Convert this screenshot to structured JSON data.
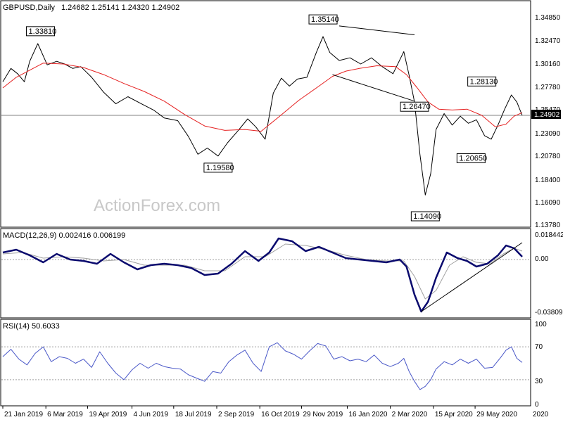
{
  "chart_data": [
    {
      "type": "ohlc",
      "title": "GBPUSD,Daily",
      "ohlc": "1.24682 1.25141 1.24320 1.24902",
      "ylim": [
        1.125,
        1.365
      ],
      "y_ticks": [
        "1.34850",
        "1.32470",
        "1.30160",
        "1.27780",
        "1.25470",
        "1.23090",
        "1.20780",
        "1.18400",
        "1.16090",
        "1.13780"
      ],
      "current_price": "1.24902",
      "watermark": "ActionForex.com",
      "price_series": [
        {
          "t": 0,
          "p": 1.287
        },
        {
          "t": 6,
          "p": 1.302
        },
        {
          "t": 11,
          "p": 1.296
        },
        {
          "t": 16,
          "p": 1.287
        },
        {
          "t": 20,
          "p": 1.31
        },
        {
          "t": 26,
          "p": 1.33
        },
        {
          "t": 33,
          "p": 1.306
        },
        {
          "t": 40,
          "p": 1.31
        },
        {
          "t": 46,
          "p": 1.307
        },
        {
          "t": 52,
          "p": 1.302
        },
        {
          "t": 58,
          "p": 1.304
        },
        {
          "t": 66,
          "p": 1.292
        },
        {
          "t": 75,
          "p": 1.275
        },
        {
          "t": 84,
          "p": 1.262
        },
        {
          "t": 93,
          "p": 1.27
        },
        {
          "t": 103,
          "p": 1.262
        },
        {
          "t": 112,
          "p": 1.255
        },
        {
          "t": 120,
          "p": 1.246
        },
        {
          "t": 130,
          "p": 1.243
        },
        {
          "t": 138,
          "p": 1.225
        },
        {
          "t": 145,
          "p": 1.205
        },
        {
          "t": 152,
          "p": 1.212
        },
        {
          "t": 160,
          "p": 1.203
        },
        {
          "t": 167,
          "p": 1.218
        },
        {
          "t": 175,
          "p": 1.232
        },
        {
          "t": 182,
          "p": 1.245
        },
        {
          "t": 188,
          "p": 1.236
        },
        {
          "t": 195,
          "p": 1.222
        },
        {
          "t": 201,
          "p": 1.274
        },
        {
          "t": 207,
          "p": 1.291
        },
        {
          "t": 213,
          "p": 1.282
        },
        {
          "t": 219,
          "p": 1.29
        },
        {
          "t": 226,
          "p": 1.292
        },
        {
          "t": 233,
          "p": 1.32
        },
        {
          "t": 238,
          "p": 1.338
        },
        {
          "t": 243,
          "p": 1.32
        },
        {
          "t": 250,
          "p": 1.311
        },
        {
          "t": 258,
          "p": 1.314
        },
        {
          "t": 266,
          "p": 1.307
        },
        {
          "t": 274,
          "p": 1.314
        },
        {
          "t": 282,
          "p": 1.304
        },
        {
          "t": 290,
          "p": 1.296
        },
        {
          "t": 298,
          "p": 1.321
        },
        {
          "t": 302,
          "p": 1.294
        },
        {
          "t": 306,
          "p": 1.264
        },
        {
          "t": 310,
          "p": 1.205
        },
        {
          "t": 314,
          "p": 1.159
        },
        {
          "t": 318,
          "p": 1.183
        },
        {
          "t": 322,
          "p": 1.233
        },
        {
          "t": 328,
          "p": 1.251
        },
        {
          "t": 334,
          "p": 1.238
        },
        {
          "t": 340,
          "p": 1.248
        },
        {
          "t": 346,
          "p": 1.24
        },
        {
          "t": 352,
          "p": 1.244
        },
        {
          "t": 358,
          "p": 1.226
        },
        {
          "t": 363,
          "p": 1.222
        },
        {
          "t": 368,
          "p": 1.238
        },
        {
          "t": 373,
          "p": 1.256
        },
        {
          "t": 378,
          "p": 1.272
        },
        {
          "t": 382,
          "p": 1.264
        },
        {
          "t": 386,
          "p": 1.249
        }
      ],
      "ma_series": [
        {
          "t": 0,
          "p": 1.28
        },
        {
          "t": 10,
          "p": 1.292
        },
        {
          "t": 20,
          "p": 1.3
        },
        {
          "t": 30,
          "p": 1.308
        },
        {
          "t": 45,
          "p": 1.307
        },
        {
          "t": 60,
          "p": 1.303
        },
        {
          "t": 75,
          "p": 1.295
        },
        {
          "t": 90,
          "p": 1.285
        },
        {
          "t": 105,
          "p": 1.276
        },
        {
          "t": 120,
          "p": 1.265
        },
        {
          "t": 135,
          "p": 1.25
        },
        {
          "t": 150,
          "p": 1.237
        },
        {
          "t": 165,
          "p": 1.232
        },
        {
          "t": 180,
          "p": 1.233
        },
        {
          "t": 192,
          "p": 1.231
        },
        {
          "t": 205,
          "p": 1.247
        },
        {
          "t": 220,
          "p": 1.266
        },
        {
          "t": 235,
          "p": 1.282
        },
        {
          "t": 245,
          "p": 1.293
        },
        {
          "t": 255,
          "p": 1.299
        },
        {
          "t": 265,
          "p": 1.302
        },
        {
          "t": 278,
          "p": 1.305
        },
        {
          "t": 292,
          "p": 1.304
        },
        {
          "t": 300,
          "p": 1.295
        },
        {
          "t": 308,
          "p": 1.28
        },
        {
          "t": 316,
          "p": 1.264
        },
        {
          "t": 324,
          "p": 1.256
        },
        {
          "t": 334,
          "p": 1.255
        },
        {
          "t": 345,
          "p": 1.256
        },
        {
          "t": 356,
          "p": 1.249
        },
        {
          "t": 366,
          "p": 1.236
        },
        {
          "t": 374,
          "p": 1.239
        },
        {
          "t": 380,
          "p": 1.248
        },
        {
          "t": 386,
          "p": 1.252
        }
      ],
      "annotations": [
        {
          "label": "1.33810",
          "t": 28,
          "p": 1.3381
        },
        {
          "label": "1.35140",
          "t": 238,
          "p": 1.3514
        },
        {
          "label": "1.19580",
          "t": 160,
          "p": 1.1958
        },
        {
          "label": "1.26470",
          "t": 306,
          "p": 1.2647
        },
        {
          "label": "1.14090",
          "t": 314,
          "p": 1.1409
        },
        {
          "label": "1.28130",
          "t": 356,
          "p": 1.2813
        },
        {
          "label": "1.20650",
          "t": 348,
          "p": 1.2065
        }
      ],
      "trendlines": [
        {
          "t1": 250,
          "p1": 1.35,
          "t2": 306,
          "p2": 1.34
        },
        {
          "t1": 245,
          "p1": 1.295,
          "t2": 306,
          "p2": 1.265
        }
      ]
    },
    {
      "type": "line",
      "title": "MACD(12,26,9) 0.002416 0.006199",
      "ylim": [
        -0.04,
        0.02
      ],
      "y_ticks": [
        "0.018442",
        "0.00",
        "-0.038095"
      ],
      "macd": [
        {
          "t": 0,
          "v": 0.005
        },
        {
          "t": 10,
          "v": 0.007
        },
        {
          "t": 20,
          "v": 0.003
        },
        {
          "t": 30,
          "v": -0.002
        },
        {
          "t": 40,
          "v": 0.004
        },
        {
          "t": 50,
          "v": 0.0
        },
        {
          "t": 60,
          "v": -0.001
        },
        {
          "t": 70,
          "v": -0.003
        },
        {
          "t": 80,
          "v": 0.004
        },
        {
          "t": 90,
          "v": -0.002
        },
        {
          "t": 100,
          "v": -0.007
        },
        {
          "t": 110,
          "v": -0.004
        },
        {
          "t": 120,
          "v": -0.003
        },
        {
          "t": 130,
          "v": -0.004
        },
        {
          "t": 140,
          "v": -0.006
        },
        {
          "t": 150,
          "v": -0.011
        },
        {
          "t": 160,
          "v": -0.01
        },
        {
          "t": 170,
          "v": -0.003
        },
        {
          "t": 180,
          "v": 0.006
        },
        {
          "t": 190,
          "v": -0.001
        },
        {
          "t": 198,
          "v": 0.005
        },
        {
          "t": 205,
          "v": 0.015
        },
        {
          "t": 215,
          "v": 0.013
        },
        {
          "t": 225,
          "v": 0.006
        },
        {
          "t": 235,
          "v": 0.009
        },
        {
          "t": 245,
          "v": 0.005
        },
        {
          "t": 255,
          "v": 0.001
        },
        {
          "t": 265,
          "v": 0.0
        },
        {
          "t": 275,
          "v": -0.001
        },
        {
          "t": 285,
          "v": -0.002
        },
        {
          "t": 295,
          "v": 0.0
        },
        {
          "t": 300,
          "v": -0.005
        },
        {
          "t": 306,
          "v": -0.025
        },
        {
          "t": 311,
          "v": -0.037
        },
        {
          "t": 316,
          "v": -0.03
        },
        {
          "t": 322,
          "v": -0.013
        },
        {
          "t": 330,
          "v": 0.005
        },
        {
          "t": 338,
          "v": 0.001
        },
        {
          "t": 345,
          "v": -0.001
        },
        {
          "t": 352,
          "v": -0.005
        },
        {
          "t": 360,
          "v": -0.003
        },
        {
          "t": 368,
          "v": 0.003
        },
        {
          "t": 374,
          "v": 0.01
        },
        {
          "t": 380,
          "v": 0.008
        },
        {
          "t": 386,
          "v": 0.002
        }
      ],
      "signal": [
        {
          "t": 0,
          "v": 0.004
        },
        {
          "t": 15,
          "v": 0.005
        },
        {
          "t": 30,
          "v": 0.001
        },
        {
          "t": 45,
          "v": 0.002
        },
        {
          "t": 60,
          "v": 0.001
        },
        {
          "t": 75,
          "v": -0.001
        },
        {
          "t": 90,
          "v": 0.0
        },
        {
          "t": 105,
          "v": -0.004
        },
        {
          "t": 120,
          "v": -0.004
        },
        {
          "t": 135,
          "v": -0.004
        },
        {
          "t": 150,
          "v": -0.008
        },
        {
          "t": 165,
          "v": -0.008
        },
        {
          "t": 180,
          "v": 0.002
        },
        {
          "t": 195,
          "v": 0.002
        },
        {
          "t": 210,
          "v": 0.011
        },
        {
          "t": 225,
          "v": 0.01
        },
        {
          "t": 240,
          "v": 0.007
        },
        {
          "t": 255,
          "v": 0.003
        },
        {
          "t": 270,
          "v": 0.0
        },
        {
          "t": 285,
          "v": -0.001
        },
        {
          "t": 298,
          "v": -0.001
        },
        {
          "t": 306,
          "v": -0.012
        },
        {
          "t": 314,
          "v": -0.028
        },
        {
          "t": 322,
          "v": -0.022
        },
        {
          "t": 332,
          "v": -0.004
        },
        {
          "t": 342,
          "v": 0.002
        },
        {
          "t": 352,
          "v": -0.002
        },
        {
          "t": 362,
          "v": -0.003
        },
        {
          "t": 372,
          "v": 0.004
        },
        {
          "t": 380,
          "v": 0.008
        },
        {
          "t": 386,
          "v": 0.006
        }
      ],
      "trendline": {
        "t1": 311,
        "v1": -0.037,
        "t2": 386,
        "v2": 0.012
      }
    },
    {
      "type": "line",
      "title": "RSI(14) 50.6033",
      "ylim": [
        0,
        100
      ],
      "y_ticks": [
        "100",
        "70",
        "30",
        "0"
      ],
      "levels": [
        70,
        30
      ],
      "rsi": [
        {
          "t": 0,
          "v": 58
        },
        {
          "t": 6,
          "v": 67
        },
        {
          "t": 12,
          "v": 55
        },
        {
          "t": 18,
          "v": 48
        },
        {
          "t": 24,
          "v": 62
        },
        {
          "t": 30,
          "v": 70
        },
        {
          "t": 36,
          "v": 52
        },
        {
          "t": 42,
          "v": 58
        },
        {
          "t": 48,
          "v": 56
        },
        {
          "t": 54,
          "v": 50
        },
        {
          "t": 60,
          "v": 55
        },
        {
          "t": 66,
          "v": 45
        },
        {
          "t": 72,
          "v": 64
        },
        {
          "t": 78,
          "v": 50
        },
        {
          "t": 84,
          "v": 38
        },
        {
          "t": 90,
          "v": 30
        },
        {
          "t": 96,
          "v": 42
        },
        {
          "t": 102,
          "v": 50
        },
        {
          "t": 108,
          "v": 44
        },
        {
          "t": 114,
          "v": 50
        },
        {
          "t": 120,
          "v": 46
        },
        {
          "t": 126,
          "v": 44
        },
        {
          "t": 132,
          "v": 43
        },
        {
          "t": 138,
          "v": 36
        },
        {
          "t": 144,
          "v": 32
        },
        {
          "t": 150,
          "v": 28
        },
        {
          "t": 156,
          "v": 40
        },
        {
          "t": 162,
          "v": 38
        },
        {
          "t": 168,
          "v": 52
        },
        {
          "t": 174,
          "v": 60
        },
        {
          "t": 180,
          "v": 66
        },
        {
          "t": 186,
          "v": 50
        },
        {
          "t": 192,
          "v": 40
        },
        {
          "t": 198,
          "v": 70
        },
        {
          "t": 204,
          "v": 75
        },
        {
          "t": 210,
          "v": 65
        },
        {
          "t": 216,
          "v": 61
        },
        {
          "t": 222,
          "v": 55
        },
        {
          "t": 228,
          "v": 65
        },
        {
          "t": 234,
          "v": 74
        },
        {
          "t": 240,
          "v": 71
        },
        {
          "t": 246,
          "v": 55
        },
        {
          "t": 252,
          "v": 58
        },
        {
          "t": 258,
          "v": 53
        },
        {
          "t": 264,
          "v": 55
        },
        {
          "t": 270,
          "v": 52
        },
        {
          "t": 276,
          "v": 60
        },
        {
          "t": 282,
          "v": 50
        },
        {
          "t": 288,
          "v": 46
        },
        {
          "t": 294,
          "v": 50
        },
        {
          "t": 298,
          "v": 56
        },
        {
          "t": 302,
          "v": 40
        },
        {
          "t": 306,
          "v": 28
        },
        {
          "t": 310,
          "v": 18
        },
        {
          "t": 314,
          "v": 22
        },
        {
          "t": 318,
          "v": 30
        },
        {
          "t": 322,
          "v": 43
        },
        {
          "t": 328,
          "v": 52
        },
        {
          "t": 334,
          "v": 48
        },
        {
          "t": 340,
          "v": 55
        },
        {
          "t": 346,
          "v": 50
        },
        {
          "t": 352,
          "v": 55
        },
        {
          "t": 358,
          "v": 44
        },
        {
          "t": 364,
          "v": 45
        },
        {
          "t": 370,
          "v": 57
        },
        {
          "t": 374,
          "v": 66
        },
        {
          "t": 378,
          "v": 70
        },
        {
          "t": 382,
          "v": 56
        },
        {
          "t": 386,
          "v": 51
        }
      ]
    }
  ],
  "x_axis": {
    "ticks": [
      {
        "label": "21 Jan 2019",
        "t": 0
      },
      {
        "label": "6 Mar 2019",
        "t": 32
      },
      {
        "label": "19 Apr 2019",
        "t": 63
      },
      {
        "label": "4 Jun 2019",
        "t": 96
      },
      {
        "label": "18 Jul 2019",
        "t": 127
      },
      {
        "label": "2 Sep 2019",
        "t": 159
      },
      {
        "label": "16 Oct 2019",
        "t": 191
      },
      {
        "label": "29 Nov 2019",
        "t": 222
      },
      {
        "label": "16 Jan 2020",
        "t": 256
      },
      {
        "label": "2 Mar 2020",
        "t": 288
      },
      {
        "label": "15 Apr 2020",
        "t": 320
      },
      {
        "label": "29 May 2020",
        "t": 351
      }
    ],
    "last_label": "2020"
  },
  "colors": {
    "price": "#000000",
    "ma": "#e52020",
    "macd": "#0a0a6e",
    "signal": "#a0a0a0",
    "rsi": "#4a58c8",
    "grid": "#a0a0a0",
    "current_line": "#808080"
  }
}
